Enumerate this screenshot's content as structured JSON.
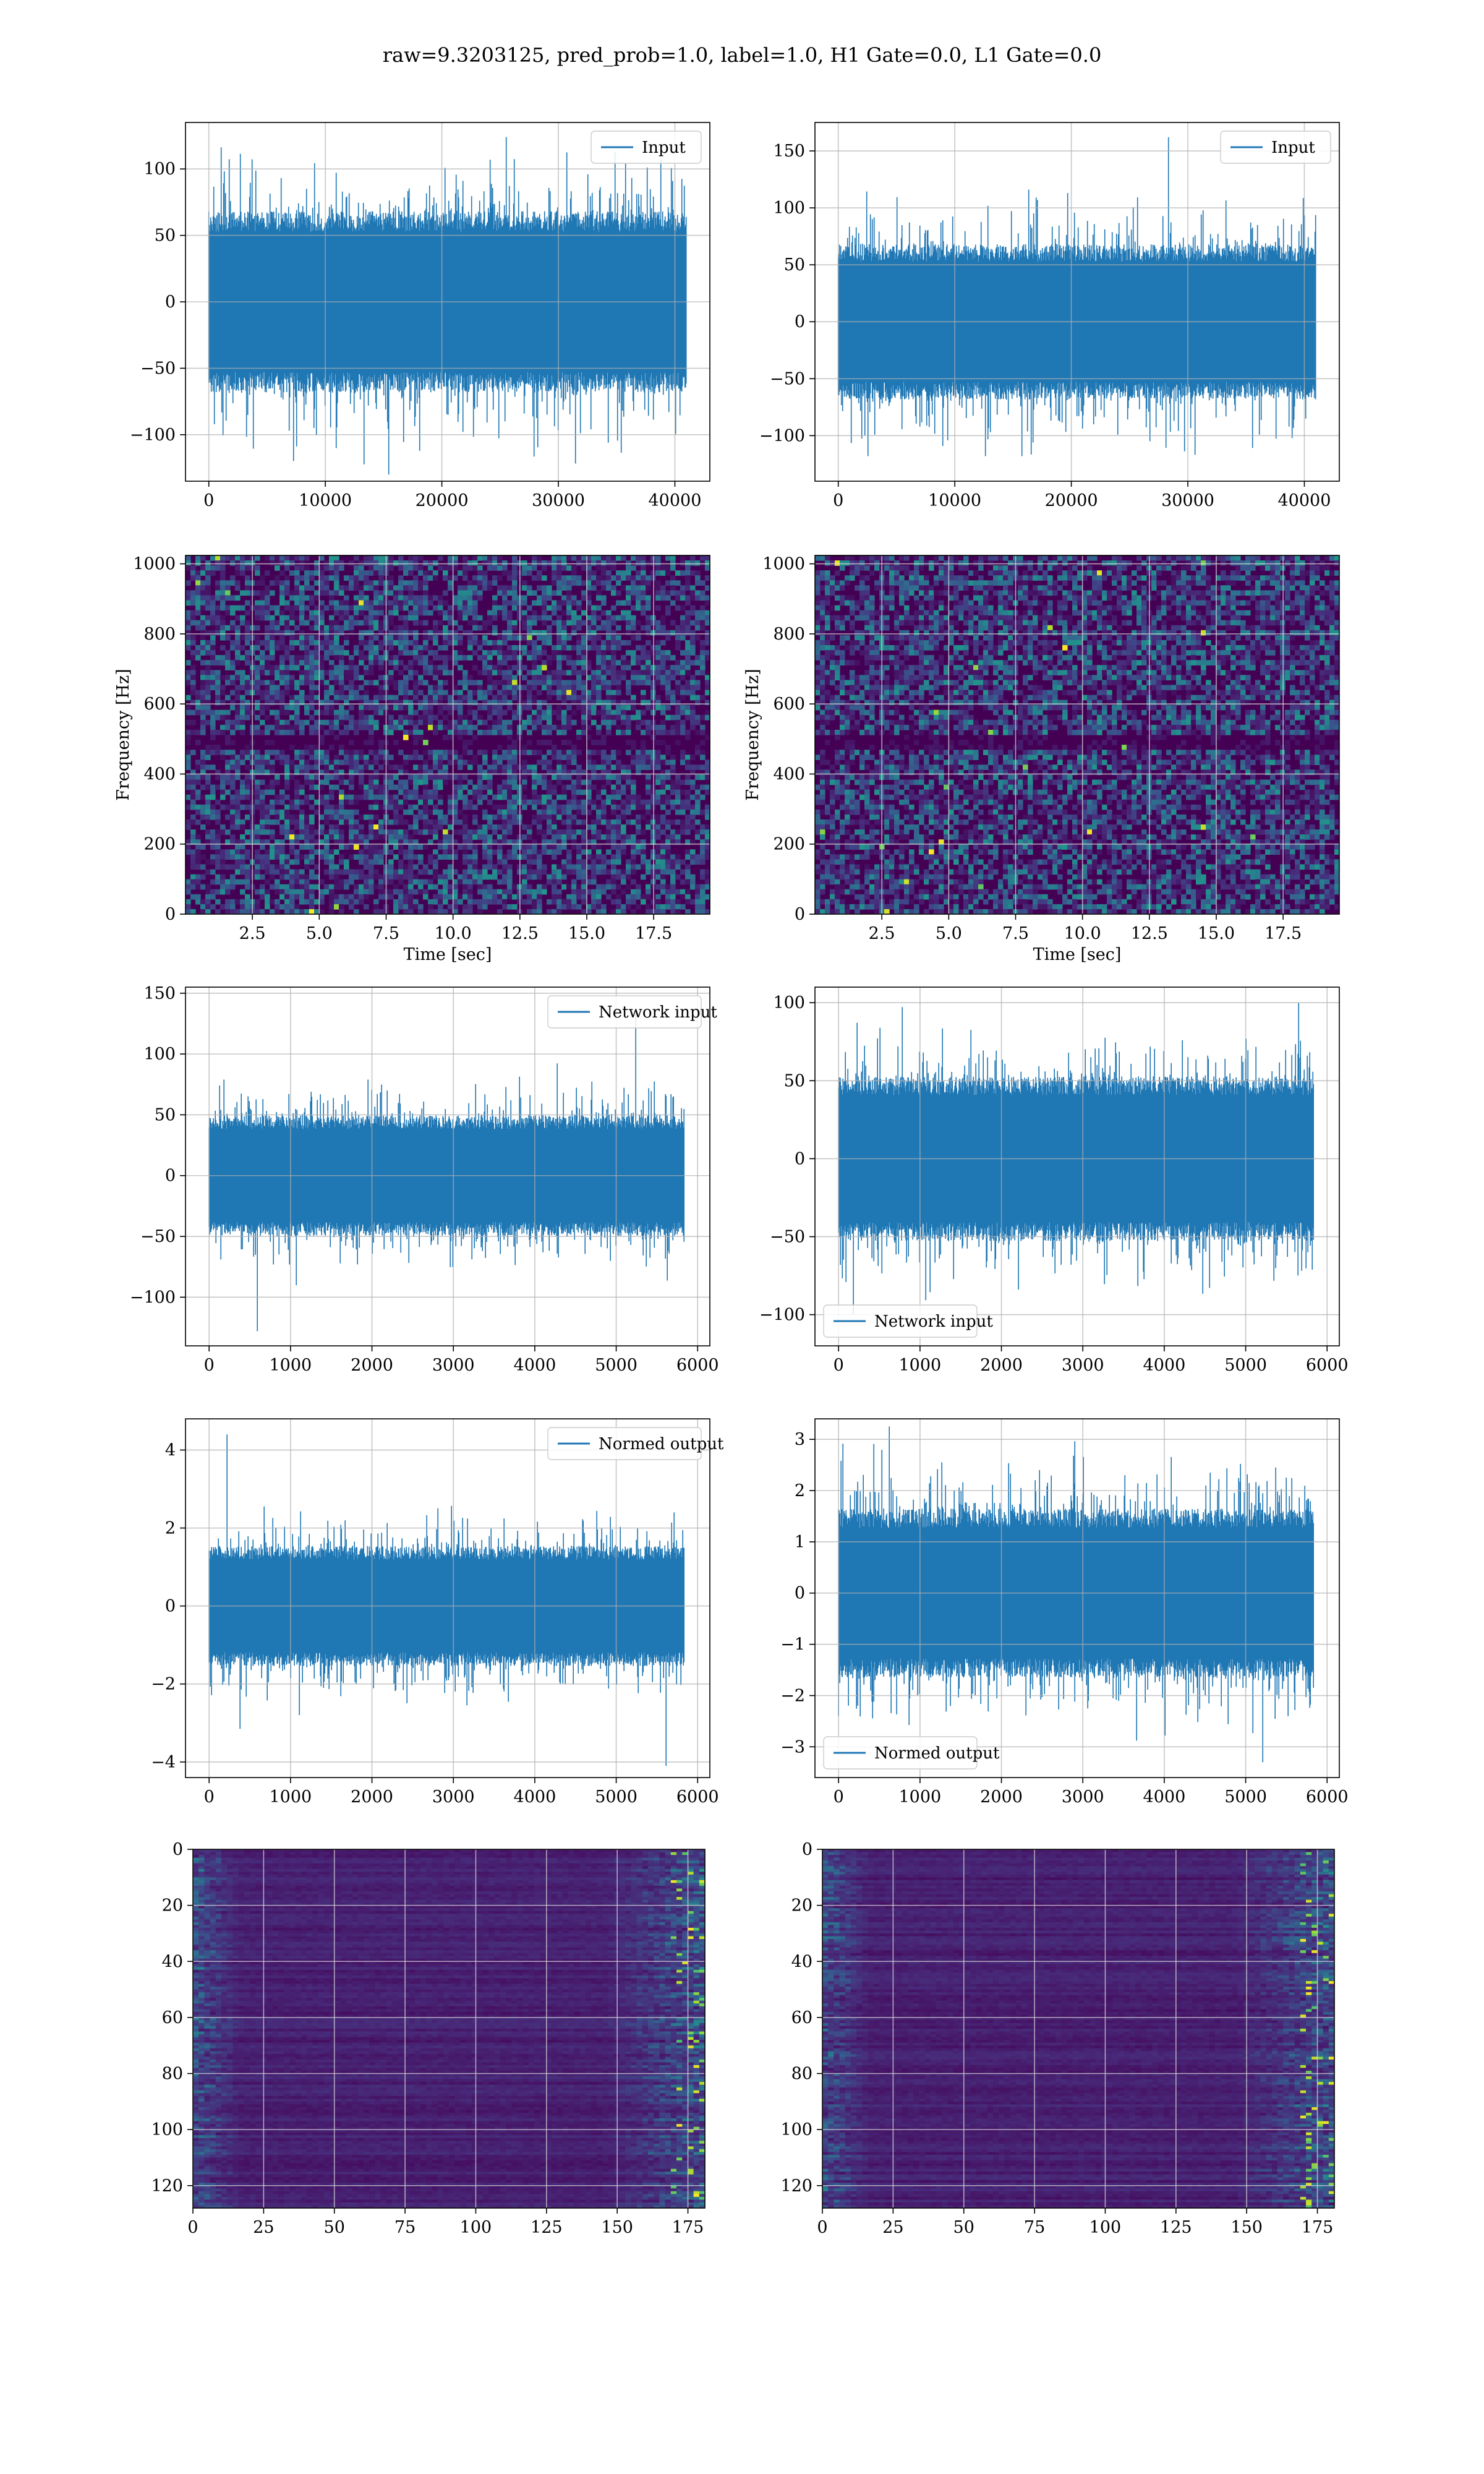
{
  "suptitle": "raw=9.3203125, pred_prob=1.0, label=1.0, H1 Gate=0.0, L1 Gate=0.0",
  "colors": {
    "line": "#1f77b4",
    "grid": "#b0b0b0",
    "viridis_low": "#440154",
    "viridis_mid": "#21918c",
    "viridis_high": "#fde725"
  },
  "chart_data": [
    {
      "id": "r1c1",
      "type": "line",
      "legend": "Input",
      "legend_loc": "upper right",
      "xlim": [
        -2000,
        43000
      ],
      "ylim": [
        -135,
        135
      ],
      "xticks": [
        0,
        10000,
        20000,
        30000,
        40000
      ],
      "yticks": [
        -100,
        -50,
        0,
        50,
        100
      ],
      "xticklabels": [
        "0",
        "10000",
        "20000",
        "30000",
        "40000"
      ],
      "yticklabels": [
        "−100",
        "−50",
        "0",
        "50",
        "100"
      ],
      "xlabel": "",
      "ylabel": "",
      "x_range": [
        0,
        40960
      ],
      "envelope": 62,
      "peak_max": 124,
      "peak_min": -130
    },
    {
      "id": "r1c2",
      "type": "line",
      "legend": "Input",
      "legend_loc": "upper right",
      "xlim": [
        -2000,
        43000
      ],
      "ylim": [
        -140,
        175
      ],
      "xticks": [
        0,
        10000,
        20000,
        30000,
        40000
      ],
      "yticks": [
        -100,
        -50,
        0,
        50,
        100,
        150
      ],
      "xticklabels": [
        "0",
        "10000",
        "20000",
        "30000",
        "40000"
      ],
      "yticklabels": [
        "−100",
        "−50",
        "0",
        "50",
        "100",
        "150"
      ],
      "xlabel": "",
      "ylabel": "",
      "x_range": [
        0,
        40960
      ],
      "envelope": 62,
      "peak_max": 162,
      "peak_min": -118
    },
    {
      "id": "r2c1",
      "type": "heatmap",
      "xlim": [
        0.0,
        19.6
      ],
      "ylim": [
        0,
        1024
      ],
      "xticks": [
        2.5,
        5.0,
        7.5,
        10.0,
        12.5,
        15.0,
        17.5
      ],
      "yticks": [
        0,
        200,
        400,
        600,
        800,
        1000
      ],
      "xticklabels": [
        "2.5",
        "5.0",
        "7.5",
        "10.0",
        "12.5",
        "15.0",
        "17.5"
      ],
      "yticklabels": [
        "0",
        "200",
        "400",
        "600",
        "800",
        "1000"
      ],
      "xlabel": "Time [sec]",
      "ylabel": "Frequency [Hz]",
      "dark_band_y": 500,
      "colormap": "viridis"
    },
    {
      "id": "r2c2",
      "type": "heatmap",
      "xlim": [
        0.0,
        19.6
      ],
      "ylim": [
        0,
        1024
      ],
      "xticks": [
        2.5,
        5.0,
        7.5,
        10.0,
        12.5,
        15.0,
        17.5
      ],
      "yticks": [
        0,
        200,
        400,
        600,
        800,
        1000
      ],
      "xticklabels": [
        "2.5",
        "5.0",
        "7.5",
        "10.0",
        "12.5",
        "15.0",
        "17.5"
      ],
      "yticklabels": [
        "0",
        "200",
        "400",
        "600",
        "800",
        "1000"
      ],
      "xlabel": "Time [sec]",
      "ylabel": "Frequency [Hz]",
      "dark_band_y": 500,
      "colormap": "viridis"
    },
    {
      "id": "r3c1",
      "type": "line",
      "legend": "Network input",
      "legend_loc": "upper right",
      "xlim": [
        -290,
        6150
      ],
      "ylim": [
        -140,
        155
      ],
      "xticks": [
        0,
        1000,
        2000,
        3000,
        4000,
        5000,
        6000
      ],
      "yticks": [
        -100,
        -50,
        0,
        50,
        100,
        150
      ],
      "xticklabels": [
        "0",
        "1000",
        "2000",
        "3000",
        "4000",
        "5000",
        "6000"
      ],
      "yticklabels": [
        "−100",
        "−50",
        "0",
        "50",
        "100",
        "150"
      ],
      "xlabel": "",
      "ylabel": "",
      "x_range": [
        0,
        5830
      ],
      "envelope": 45,
      "peak_max": 138,
      "peak_min": -128
    },
    {
      "id": "r3c2",
      "type": "line",
      "legend": "Network input",
      "legend_loc": "lower left",
      "xlim": [
        -290,
        6150
      ],
      "ylim": [
        -120,
        110
      ],
      "xticks": [
        0,
        1000,
        2000,
        3000,
        4000,
        5000,
        6000
      ],
      "yticks": [
        -100,
        -50,
        0,
        50,
        100
      ],
      "xticklabels": [
        "0",
        "1000",
        "2000",
        "3000",
        "4000",
        "5000",
        "6000"
      ],
      "yticklabels": [
        "−100",
        "−50",
        "0",
        "50",
        "100"
      ],
      "xlabel": "",
      "ylabel": "",
      "x_range": [
        0,
        5830
      ],
      "envelope": 48,
      "peak_max": 100,
      "peak_min": -100
    },
    {
      "id": "r4c1",
      "type": "line",
      "legend": "Normed output",
      "legend_loc": "upper right",
      "xlim": [
        -290,
        6150
      ],
      "ylim": [
        -4.4,
        4.8
      ],
      "xticks": [
        0,
        1000,
        2000,
        3000,
        4000,
        5000,
        6000
      ],
      "yticks": [
        -4,
        -2,
        0,
        2,
        4
      ],
      "xticklabels": [
        "0",
        "1000",
        "2000",
        "3000",
        "4000",
        "5000",
        "6000"
      ],
      "yticklabels": [
        "−4",
        "−2",
        "0",
        "2",
        "4"
      ],
      "xlabel": "",
      "ylabel": "",
      "x_range": [
        0,
        5830
      ],
      "envelope": 1.4,
      "peak_max": 4.4,
      "peak_min": -4.1
    },
    {
      "id": "r4c2",
      "type": "line",
      "legend": "Normed output",
      "legend_loc": "lower left",
      "xlim": [
        -290,
        6150
      ],
      "ylim": [
        -3.6,
        3.4
      ],
      "xticks": [
        0,
        1000,
        2000,
        3000,
        4000,
        5000,
        6000
      ],
      "yticks": [
        -3,
        -2,
        -1,
        0,
        1,
        2,
        3
      ],
      "xticklabels": [
        "0",
        "1000",
        "2000",
        "3000",
        "4000",
        "5000",
        "6000"
      ],
      "yticklabels": [
        "−3",
        "−2",
        "−1",
        "0",
        "1",
        "2",
        "3"
      ],
      "xlabel": "",
      "ylabel": "",
      "x_range": [
        0,
        5830
      ],
      "envelope": 1.5,
      "peak_max": 3.25,
      "peak_min": -3.3
    },
    {
      "id": "r5c1",
      "type": "heatmap",
      "xlim": [
        0,
        181
      ],
      "ylim": [
        128,
        0
      ],
      "xticks": [
        0,
        25,
        50,
        75,
        100,
        125,
        150,
        175
      ],
      "yticks": [
        0,
        20,
        40,
        60,
        80,
        100,
        120
      ],
      "xticklabels": [
        "0",
        "25",
        "50",
        "75",
        "100",
        "125",
        "150",
        "175"
      ],
      "yticklabels": [
        "0",
        "20",
        "40",
        "60",
        "80",
        "100",
        "120"
      ],
      "xlabel": "",
      "ylabel": "",
      "colormap": "viridis"
    },
    {
      "id": "r5c2",
      "type": "heatmap",
      "xlim": [
        0,
        181
      ],
      "ylim": [
        128,
        0
      ],
      "xticks": [
        0,
        25,
        50,
        75,
        100,
        125,
        150,
        175
      ],
      "yticks": [
        0,
        20,
        40,
        60,
        80,
        100,
        120
      ],
      "xticklabels": [
        "0",
        "25",
        "50",
        "75",
        "100",
        "125",
        "150",
        "175"
      ],
      "yticklabels": [
        "0",
        "20",
        "40",
        "60",
        "80",
        "100",
        "120"
      ],
      "xlabel": "",
      "ylabel": "",
      "colormap": "viridis"
    }
  ]
}
